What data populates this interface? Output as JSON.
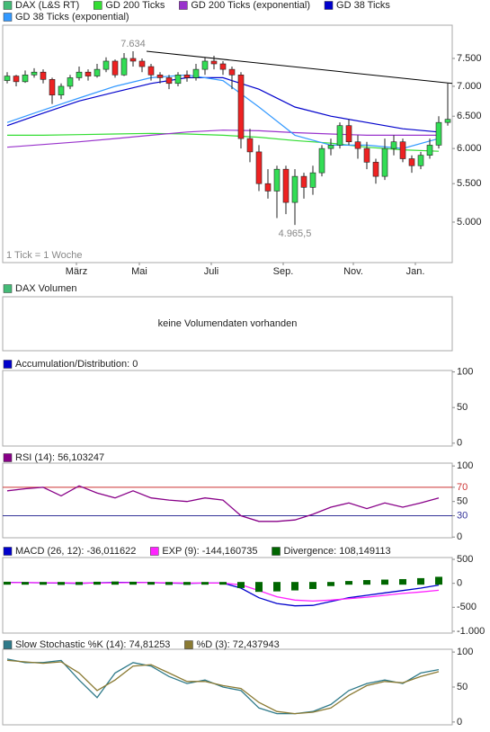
{
  "chart_data": [
    {
      "type": "candlestick",
      "log": true,
      "note": "1 Tick = 1 Woche",
      "xlim": [
        -0.5,
        49.5
      ],
      "ylim": [
        4523,
        8144
      ],
      "xticks": [
        {
          "value": 7.7,
          "label": "März"
        },
        {
          "value": 14.7,
          "label": "Mai"
        },
        {
          "value": 22.7,
          "label": "Juli"
        },
        {
          "value": 30.7,
          "label": "Sep."
        },
        {
          "value": 38.5,
          "label": "Nov."
        },
        {
          "value": 45.4,
          "label": "Jan."
        }
      ],
      "yticks": [
        {
          "value": 5000,
          "label": "5.000"
        },
        {
          "value": 5500,
          "label": "5.500"
        },
        {
          "value": 6000,
          "label": "6.000"
        },
        {
          "value": 6500,
          "label": "6.500"
        },
        {
          "value": 7000,
          "label": "7.000"
        },
        {
          "value": 7500,
          "label": "7.500"
        }
      ],
      "up_color": "#33dd55",
      "down_color": "#ee2222",
      "open": [
        7100,
        7180,
        7080,
        7200,
        7250,
        7120,
        6850,
        7000,
        7150,
        7250,
        7180,
        7300,
        7450,
        7200,
        7500,
        7450,
        7350,
        7200,
        7150,
        7050,
        7200,
        7150,
        7300,
        7450,
        7400,
        7300,
        7200,
        6150,
        5950,
        5500,
        5400,
        5700,
        5250,
        5600,
        5450,
        5650,
        6000,
        6050,
        6350,
        6100,
        6000,
        5800,
        5600,
        6000,
        6100,
        5850,
        5750,
        5900,
        6050,
        6400
      ],
      "high": [
        7250,
        7200,
        7280,
        7320,
        7300,
        7150,
        7050,
        7200,
        7350,
        7300,
        7400,
        7520,
        7480,
        7600,
        7634,
        7500,
        7400,
        7250,
        7200,
        7250,
        7280,
        7400,
        7520,
        7550,
        7450,
        7350,
        7250,
        6300,
        6050,
        5700,
        5750,
        5750,
        5700,
        5650,
        5750,
        6050,
        6150,
        6400,
        6450,
        6200,
        6100,
        5850,
        6150,
        6200,
        6150,
        5900,
        5950,
        6150,
        6500,
        7050
      ],
      "low": [
        7050,
        7000,
        7060,
        7150,
        7050,
        6700,
        6780,
        6950,
        7100,
        7100,
        7150,
        7250,
        7150,
        7180,
        7350,
        7250,
        7100,
        7050,
        6950,
        7000,
        7080,
        7100,
        7200,
        7300,
        7200,
        6950,
        6000,
        5800,
        5400,
        5300,
        5050,
        5100,
        4965.5,
        5300,
        5350,
        5600,
        5900,
        6000,
        6050,
        5850,
        5700,
        5500,
        5550,
        5900,
        5800,
        5650,
        5700,
        5850,
        6000,
        6350
      ],
      "close": [
        7180,
        7080,
        7200,
        7250,
        7120,
        6850,
        7000,
        7150,
        7250,
        7180,
        7300,
        7450,
        7200,
        7500,
        7450,
        7350,
        7200,
        7150,
        7050,
        7200,
        7150,
        7300,
        7450,
        7400,
        7300,
        7200,
        6150,
        5950,
        5500,
        5400,
        5700,
        5250,
        5600,
        5450,
        5650,
        6000,
        6050,
        6350,
        6100,
        6000,
        5800,
        5600,
        6000,
        6100,
        5850,
        5750,
        5900,
        6050,
        6400,
        6450
      ],
      "series": [
        {
          "name": "DAX (L&S RT)",
          "color": "#44bb77"
        },
        {
          "name": "GD 200 Ticks",
          "color": "#33dd33",
          "x": [
            0,
            4,
            8,
            12,
            16,
            20,
            24,
            28,
            32,
            36,
            40,
            44,
            48
          ],
          "values": [
            6200,
            6200,
            6210,
            6220,
            6230,
            6220,
            6200,
            6170,
            6120,
            6080,
            6020,
            5980,
            5960
          ]
        },
        {
          "name": "GD 200 Ticks (exponential)",
          "color": "#9933cc",
          "x": [
            0,
            4,
            8,
            12,
            16,
            20,
            24,
            28,
            32,
            36,
            40,
            44,
            48
          ],
          "values": [
            6020,
            6060,
            6100,
            6150,
            6200,
            6250,
            6280,
            6270,
            6240,
            6220,
            6200,
            6200,
            6200
          ]
        },
        {
          "name": "GD 38 Ticks",
          "color": "#0000cc",
          "x": [
            0,
            4,
            8,
            12,
            16,
            20,
            24,
            28,
            32,
            36,
            40,
            44,
            48
          ],
          "values": [
            6350,
            6550,
            6750,
            6900,
            7050,
            7150,
            7150,
            6950,
            6650,
            6500,
            6400,
            6300,
            6250
          ]
        },
        {
          "name": "GD 38 Ticks (exponential)",
          "color": "#3399ff",
          "x": [
            0,
            4,
            8,
            12,
            16,
            20,
            24,
            28,
            32,
            36,
            40,
            44,
            48
          ],
          "values": [
            6400,
            6600,
            6800,
            7000,
            7150,
            7200,
            7100,
            6650,
            6200,
            6050,
            6050,
            6000,
            6150
          ]
        }
      ],
      "trendline": {
        "color": "#000000",
        "x": [
          15.5,
          49.5
        ],
        "values": [
          7634,
          7050
        ]
      },
      "annotations": [
        {
          "text": "7.634",
          "x": 14,
          "value": 7634
        },
        {
          "text": "4.965,5",
          "x": 32,
          "value": 4965.5
        }
      ]
    },
    {
      "type": "empty",
      "title": "DAX Volumen",
      "color": "#44bb77",
      "message": "keine Volumendaten vorhanden"
    },
    {
      "type": "line",
      "xlim": [
        -0.5,
        49.5
      ],
      "ylim": [
        -4,
        102
      ],
      "yticks": [
        0,
        50,
        100
      ],
      "series": [
        {
          "name": "Accumulation/Distribution: 0",
          "color": "#0000cc"
        }
      ]
    },
    {
      "type": "line",
      "xlim": [
        -0.5,
        49.5
      ],
      "ylim": [
        -1,
        104
      ],
      "yticks": [
        0,
        30,
        50,
        70,
        100
      ],
      "reference_lines": [
        {
          "value": 70,
          "color": "#cc3333"
        },
        {
          "value": 30,
          "color": "#333399"
        }
      ],
      "x": [
        0,
        2,
        4,
        6,
        8,
        10,
        12,
        14,
        16,
        18,
        20,
        22,
        24,
        26,
        28,
        30,
        32,
        34,
        36,
        38,
        40,
        42,
        44,
        46,
        48
      ],
      "series": [
        {
          "name": "RSI (14): 56,103247",
          "color": "#880088",
          "values": [
            65,
            68,
            70,
            58,
            72,
            62,
            55,
            65,
            55,
            52,
            50,
            55,
            52,
            30,
            22,
            22,
            24,
            32,
            42,
            48,
            40,
            48,
            42,
            48,
            55
          ]
        }
      ]
    },
    {
      "type": "line",
      "xlim": [
        -0.5,
        49.5
      ],
      "ylim": [
        -1038,
        538
      ],
      "yticks": [
        500,
        0,
        -500,
        {
          "value": -1000,
          "label": "-1.000"
        }
      ],
      "x": [
        0,
        2,
        4,
        6,
        8,
        10,
        12,
        14,
        16,
        18,
        20,
        22,
        24,
        26,
        28,
        30,
        32,
        34,
        36,
        38,
        40,
        42,
        44,
        46,
        48
      ],
      "series": [
        {
          "name": "MACD (26, 12): -36,011622",
          "color": "#0000cc",
          "values": [
            20,
            15,
            10,
            5,
            0,
            10,
            20,
            20,
            15,
            5,
            0,
            5,
            5,
            -100,
            -300,
            -420,
            -470,
            -460,
            -380,
            -300,
            -250,
            -200,
            -150,
            -100,
            -36
          ]
        },
        {
          "name": "EXP (9): -144,160735",
          "color": "#ff22ff",
          "values": [
            15,
            15,
            12,
            10,
            5,
            5,
            10,
            15,
            15,
            10,
            5,
            5,
            5,
            -30,
            -150,
            -280,
            -350,
            -370,
            -350,
            -320,
            -290,
            -250,
            -210,
            -180,
            -144
          ]
        },
        {
          "name": "Divergence: 108,149113",
          "color": "#006600",
          "mark": "bar",
          "values": [
            5,
            0,
            -2,
            -5,
            -5,
            5,
            10,
            5,
            0,
            -5,
            -5,
            0,
            0,
            -70,
            -150,
            -140,
            -120,
            -90,
            -30,
            20,
            40,
            50,
            60,
            80,
            108
          ]
        }
      ]
    },
    {
      "type": "line",
      "xlim": [
        -0.5,
        49.5
      ],
      "ylim": [
        -4,
        104
      ],
      "yticks": [
        0,
        50,
        100
      ],
      "x": [
        0,
        2,
        4,
        6,
        8,
        10,
        12,
        14,
        16,
        18,
        20,
        22,
        24,
        26,
        28,
        30,
        32,
        34,
        36,
        38,
        40,
        42,
        44,
        46,
        48
      ],
      "series": [
        {
          "name": "Slow Stochastic %K (14): 74,81253",
          "color": "#2f7a8a",
          "values": [
            90,
            85,
            85,
            88,
            60,
            35,
            70,
            85,
            80,
            65,
            55,
            60,
            50,
            45,
            20,
            12,
            12,
            15,
            25,
            45,
            55,
            60,
            55,
            70,
            75
          ]
        },
        {
          "name": "%D (3): 72,437943",
          "color": "#8a7a33",
          "values": [
            88,
            86,
            84,
            86,
            70,
            45,
            60,
            80,
            82,
            70,
            58,
            58,
            52,
            48,
            28,
            15,
            12,
            14,
            20,
            38,
            52,
            58,
            56,
            65,
            72
          ]
        }
      ]
    }
  ]
}
